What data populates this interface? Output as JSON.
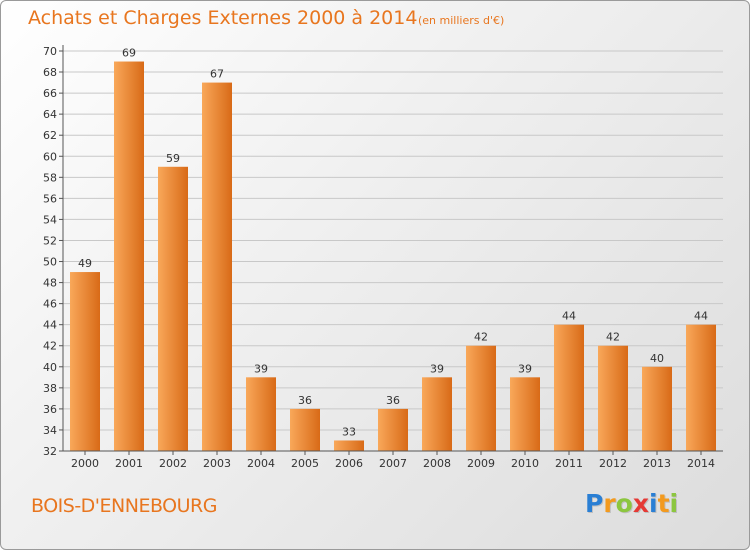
{
  "title": "Achats et Charges Externes 2000 à 2014",
  "unit_note": "(en milliers d'€)",
  "commune": "BOIS-D'ENNEBOURG",
  "logo": {
    "letters": [
      {
        "char": "P",
        "color": "#2a7fd4"
      },
      {
        "char": "r",
        "color": "#f39a1e"
      },
      {
        "char": "o",
        "color": "#8cc63f"
      },
      {
        "char": "x",
        "color": "#e53935"
      },
      {
        "char": "i",
        "color": "#2a7fd4"
      },
      {
        "char": "t",
        "color": "#f39a1e"
      },
      {
        "char": "i",
        "color": "#8cc63f"
      }
    ]
  },
  "colors": {
    "bar_light": "#f9a85a",
    "bar_dark": "#d86a17",
    "grid": "#c8c8c8",
    "axis": "#555555",
    "text": "#333333"
  },
  "chart_data": {
    "type": "bar",
    "categories": [
      "2000",
      "2001",
      "2002",
      "2003",
      "2004",
      "2005",
      "2006",
      "2007",
      "2008",
      "2009",
      "2010",
      "2011",
      "2012",
      "2013",
      "2014"
    ],
    "values": [
      49,
      69,
      59,
      67,
      39,
      36,
      33,
      36,
      39,
      42,
      39,
      44,
      42,
      40,
      44
    ],
    "ylim": [
      32,
      70
    ],
    "ytick_step": 2,
    "grid": true
  }
}
